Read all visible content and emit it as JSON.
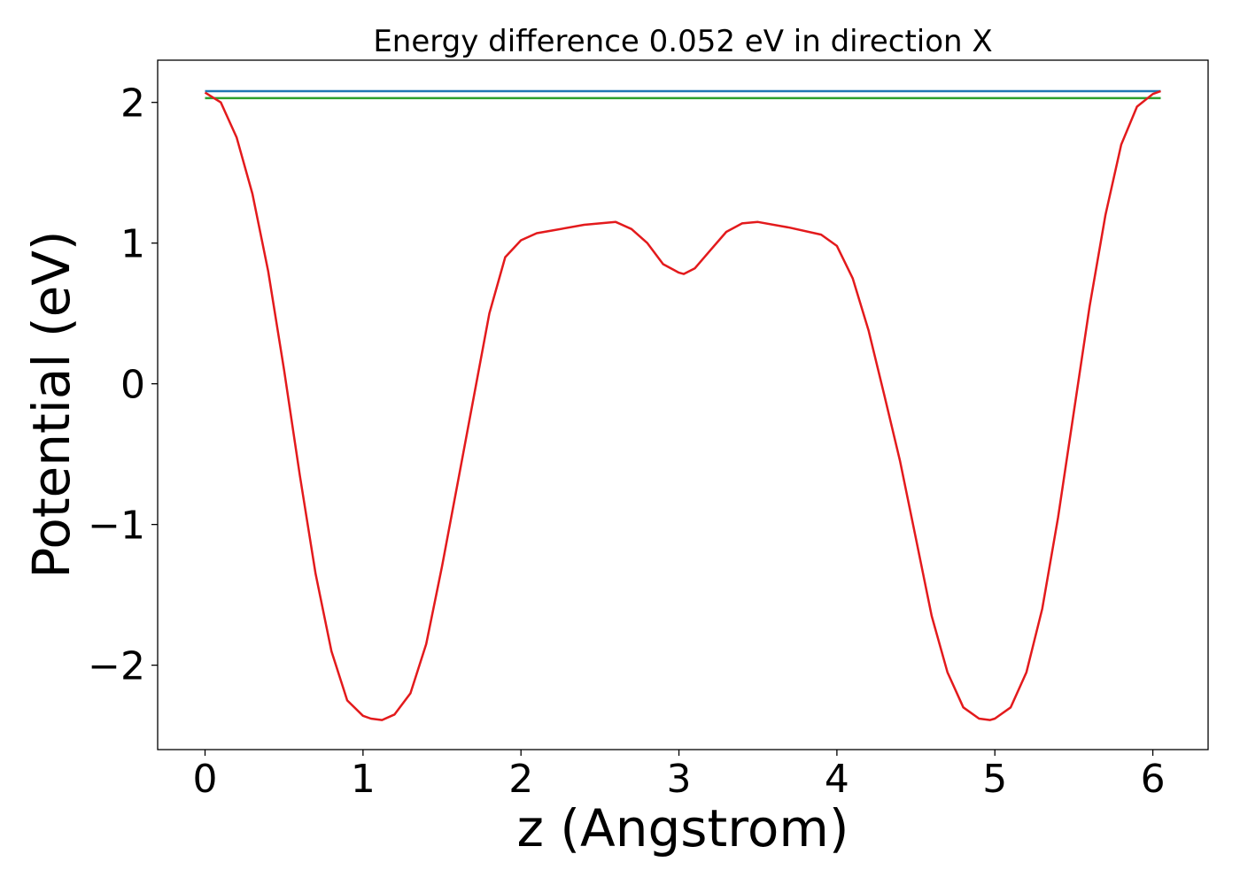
{
  "chart_data": {
    "type": "line",
    "title": "Energy difference 0.052 eV in direction X",
    "xlabel": "z (Angstrom)",
    "ylabel": "Potential (eV)",
    "xlim": [
      -0.3,
      6.35
    ],
    "ylim": [
      -2.6,
      2.3
    ],
    "xticks": [
      0,
      1,
      2,
      3,
      4,
      5,
      6
    ],
    "xtick_labels": [
      "0",
      "1",
      "2",
      "3",
      "4",
      "5",
      "6"
    ],
    "yticks": [
      -2,
      -1,
      0,
      1,
      2
    ],
    "ytick_labels": [
      "−2",
      "−1",
      "0",
      "1",
      "2"
    ],
    "grid": false,
    "legend": "none",
    "series": [
      {
        "color": "#1f77b4",
        "x": [
          0,
          6.05
        ],
        "y": [
          2.08,
          2.08
        ]
      },
      {
        "color": "#2ca02c",
        "x": [
          0,
          6.05
        ],
        "y": [
          2.03,
          2.03
        ]
      },
      {
        "color": "#e31a1c",
        "x": [
          0,
          0.1,
          0.2,
          0.3,
          0.4,
          0.5,
          0.6,
          0.7,
          0.8,
          0.9,
          1.0,
          1.05,
          1.12,
          1.2,
          1.3,
          1.4,
          1.5,
          1.6,
          1.7,
          1.8,
          1.9,
          2.0,
          2.1,
          2.2,
          2.4,
          2.6,
          2.7,
          2.8,
          2.9,
          3.0,
          3.03,
          3.1,
          3.2,
          3.3,
          3.4,
          3.5,
          3.7,
          3.9,
          4.0,
          4.1,
          4.2,
          4.3,
          4.4,
          4.5,
          4.6,
          4.7,
          4.8,
          4.9,
          4.97,
          5.0,
          5.1,
          5.2,
          5.3,
          5.4,
          5.5,
          5.6,
          5.7,
          5.8,
          5.9,
          6.0,
          6.05
        ],
        "y": [
          2.07,
          2.0,
          1.75,
          1.35,
          0.8,
          0.1,
          -0.65,
          -1.35,
          -1.9,
          -2.25,
          -2.36,
          -2.38,
          -2.39,
          -2.35,
          -2.2,
          -1.85,
          -1.3,
          -0.7,
          -0.1,
          0.5,
          0.9,
          1.02,
          1.07,
          1.09,
          1.13,
          1.15,
          1.1,
          1.0,
          0.85,
          0.79,
          0.78,
          0.82,
          0.95,
          1.08,
          1.14,
          1.15,
          1.11,
          1.06,
          0.98,
          0.75,
          0.38,
          -0.08,
          -0.55,
          -1.1,
          -1.65,
          -2.05,
          -2.3,
          -2.38,
          -2.39,
          -2.38,
          -2.3,
          -2.05,
          -1.6,
          -0.95,
          -0.2,
          0.55,
          1.2,
          1.7,
          1.97,
          2.06,
          2.08
        ]
      }
    ]
  }
}
